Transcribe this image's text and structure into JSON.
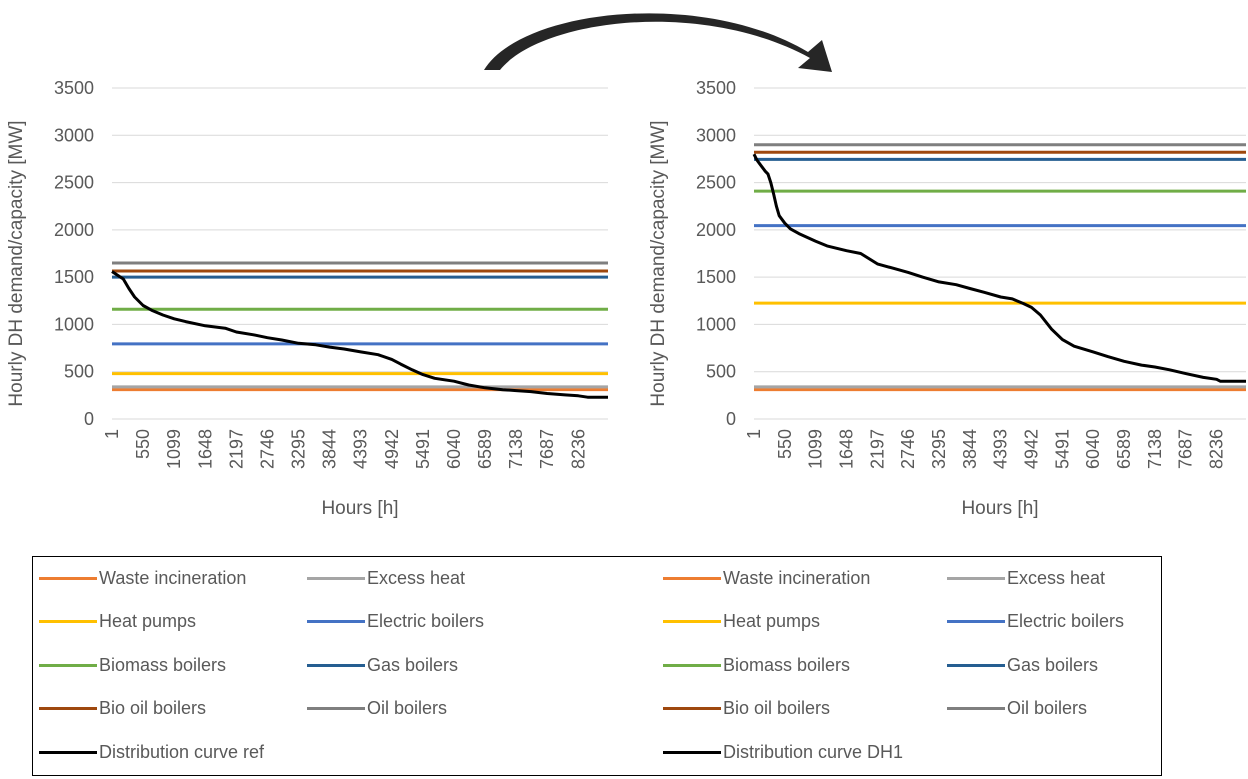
{
  "chart_data": [
    {
      "type": "line",
      "name": "reference",
      "xlabel": "Hours [h]",
      "ylabel": "Hourly DH demand/capacity [MW]",
      "ylim": [
        0,
        3500
      ],
      "yticks": [
        0,
        500,
        1000,
        1500,
        2000,
        2500,
        3000,
        3500
      ],
      "xlim": [
        1,
        8760
      ],
      "xticks": [
        "1",
        "550",
        "1099",
        "1648",
        "2197",
        "2746",
        "3295",
        "3844",
        "4393",
        "4942",
        "5491",
        "6040",
        "6589",
        "7138",
        "7687",
        "8236"
      ],
      "grid": true,
      "capacity_series": [
        {
          "name": "Waste incineration",
          "color": "#ed7d31",
          "value": 310
        },
        {
          "name": "Excess heat",
          "color": "#a5a5a5",
          "value": 340
        },
        {
          "name": "Heat pumps",
          "color": "#ffc000",
          "value": 480
        },
        {
          "name": "Electric boilers",
          "color": "#4472c4",
          "value": 795
        },
        {
          "name": "Biomass boilers",
          "color": "#70ad47",
          "value": 1160
        },
        {
          "name": "Gas boilers",
          "color": "#255e91",
          "value": 1500
        },
        {
          "name": "Bio oil boilers",
          "color": "#9e480e",
          "value": 1565
        },
        {
          "name": "Oil boilers",
          "color": "#7f7f7f",
          "value": 1650
        }
      ],
      "distribution_curve": {
        "name": "Distribution curve ref",
        "color": "#000000",
        "x": [
          1,
          100,
          200,
          300,
          400,
          550,
          700,
          900,
          1099,
          1300,
          1648,
          2000,
          2197,
          2500,
          2746,
          3000,
          3295,
          3600,
          3844,
          4100,
          4393,
          4700,
          4942,
          5100,
          5300,
          5491,
          5700,
          6040,
          6300,
          6589,
          6900,
          7138,
          7400,
          7687,
          8000,
          8236,
          8400,
          8760
        ],
        "y": [
          1560,
          1520,
          1480,
          1380,
          1290,
          1200,
          1150,
          1100,
          1060,
          1030,
          985,
          960,
          920,
          890,
          860,
          835,
          800,
          785,
          760,
          740,
          710,
          680,
          630,
          580,
          520,
          470,
          430,
          400,
          360,
          330,
          310,
          300,
          290,
          270,
          255,
          245,
          230,
          230
        ]
      }
    },
    {
      "type": "line",
      "name": "DH1",
      "xlabel": "Hours [h]",
      "ylabel": "Hourly DH demand/capacity [MW]",
      "ylim": [
        0,
        3500
      ],
      "yticks": [
        0,
        500,
        1000,
        1500,
        2000,
        2500,
        3000,
        3500
      ],
      "xlim": [
        1,
        8760
      ],
      "xticks": [
        "1",
        "550",
        "1099",
        "1648",
        "2197",
        "2746",
        "3295",
        "3844",
        "4393",
        "4942",
        "5491",
        "6040",
        "6589",
        "7138",
        "7687",
        "8236"
      ],
      "grid": true,
      "capacity_series": [
        {
          "name": "Waste incineration",
          "color": "#ed7d31",
          "value": 310
        },
        {
          "name": "Excess heat",
          "color": "#a5a5a5",
          "value": 340
        },
        {
          "name": "Heat pumps",
          "color": "#ffc000",
          "value": 1225
        },
        {
          "name": "Electric boilers",
          "color": "#4472c4",
          "value": 2045
        },
        {
          "name": "Biomass boilers",
          "color": "#70ad47",
          "value": 2410
        },
        {
          "name": "Gas boilers",
          "color": "#255e91",
          "value": 2745
        },
        {
          "name": "Bio oil boilers",
          "color": "#9e480e",
          "value": 2820
        },
        {
          "name": "Oil boilers",
          "color": "#7f7f7f",
          "value": 2900
        }
      ],
      "distribution_curve": {
        "name": "Distribution curve DH1",
        "color": "#000000",
        "x": [
          1,
          50,
          100,
          200,
          250,
          300,
          350,
          400,
          450,
          550,
          650,
          800,
          1099,
          1300,
          1648,
          1900,
          2197,
          2500,
          2746,
          3000,
          3295,
          3600,
          3844,
          4100,
          4393,
          4600,
          4800,
          4942,
          5100,
          5300,
          5491,
          5700,
          6040,
          6300,
          6589,
          6900,
          7138,
          7400,
          7687,
          8000,
          8236,
          8300,
          8760
        ],
        "y": [
          2800,
          2740,
          2700,
          2620,
          2590,
          2500,
          2380,
          2250,
          2150,
          2070,
          2010,
          1960,
          1880,
          1830,
          1780,
          1750,
          1640,
          1590,
          1550,
          1500,
          1450,
          1420,
          1380,
          1340,
          1290,
          1270,
          1220,
          1180,
          1100,
          950,
          840,
          770,
          710,
          660,
          610,
          570,
          550,
          520,
          480,
          440,
          420,
          400,
          400
        ]
      }
    }
  ],
  "legend": {
    "left_column": [
      {
        "label": "Waste incineration",
        "color": "#ed7d31"
      },
      {
        "label": "Excess heat",
        "color": "#a5a5a5"
      },
      {
        "label": "Heat pumps",
        "color": "#ffc000"
      },
      {
        "label": "Electric boilers",
        "color": "#4472c4"
      },
      {
        "label": "Biomass boilers",
        "color": "#70ad47"
      },
      {
        "label": "Gas boilers",
        "color": "#255e91"
      },
      {
        "label": "Bio oil boilers",
        "color": "#9e480e"
      },
      {
        "label": "Oil boilers",
        "color": "#7f7f7f"
      },
      {
        "label": "Distribution curve ref",
        "color": "#000000"
      }
    ],
    "right_column": [
      {
        "label": "Waste incineration",
        "color": "#ed7d31"
      },
      {
        "label": "Excess heat",
        "color": "#a5a5a5"
      },
      {
        "label": "Heat pumps",
        "color": "#ffc000"
      },
      {
        "label": "Electric boilers",
        "color": "#4472c4"
      },
      {
        "label": "Biomass boilers",
        "color": "#70ad47"
      },
      {
        "label": "Gas boilers",
        "color": "#255e91"
      },
      {
        "label": "Bio oil boilers",
        "color": "#9e480e"
      },
      {
        "label": "Oil boilers",
        "color": "#7f7f7f"
      },
      {
        "label": "Distribution curve DH1",
        "color": "#000000"
      }
    ]
  },
  "arrow": {
    "icon": "curved-arrow-right",
    "color": "#262626"
  }
}
